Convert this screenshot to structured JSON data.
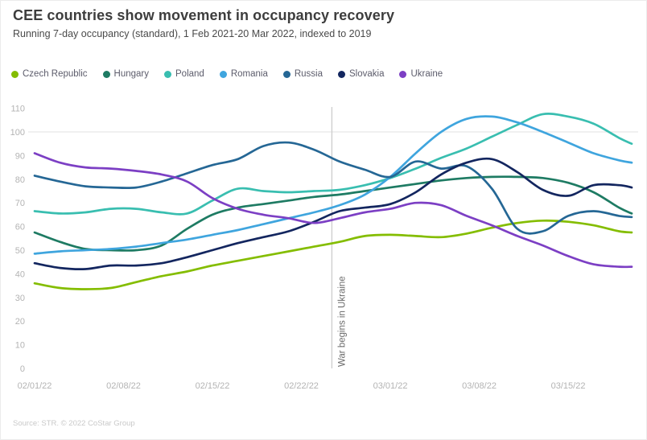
{
  "header": {
    "title": "CEE countries show movement in occupancy recovery",
    "subtitle": "Running 7-day occupancy (standard), 1 Feb 2021-20 Mar 2022, indexed to 2019"
  },
  "source": "Source: STR. © 2022 CoStar Group",
  "colors": {
    "title_text": "#3d3d3d",
    "subtitle_text": "#4a4a4a",
    "axis_text": "#b3b3b3",
    "legend_text": "#5c5c6b",
    "gridline": "#e2e2e2",
    "war_line": "#cccccc",
    "war_label_text": "#6a6a6a",
    "background": "#ffffff"
  },
  "chart_data": {
    "type": "line",
    "title": "CEE countries show movement in occupancy recovery",
    "subtitle": "Running 7-day occupancy (standard), 1 Feb 2021-20 Mar 2022, indexed to 2019",
    "xlabel": "",
    "ylabel": "",
    "ylim": [
      0,
      110
    ],
    "y_ticks": [
      0,
      10,
      20,
      30,
      40,
      50,
      60,
      70,
      80,
      90,
      100,
      110
    ],
    "gridlines_y": [
      100
    ],
    "grid": "only at 100",
    "legend_position": "top",
    "x_tick_labels": [
      "02/01/22",
      "02/08/22",
      "02/15/22",
      "02/22/22",
      "03/01/22",
      "03/08/22",
      "03/15/22"
    ],
    "x_tick_day_offsets": [
      0,
      7,
      14,
      21,
      28,
      35,
      42
    ],
    "annotation": {
      "label": "War begins in Ukraine",
      "date": "02/24/22",
      "day_offset": 23.4
    },
    "sample_dates": [
      "02/01/22",
      "02/03/22",
      "02/05/22",
      "02/07/22",
      "02/09/22",
      "02/11/22",
      "02/13/22",
      "02/15/22",
      "02/17/22",
      "02/19/22",
      "02/21/22",
      "02/23/22",
      "02/25/22",
      "02/27/22",
      "03/01/22",
      "03/03/22",
      "03/05/22",
      "03/07/22",
      "03/09/22",
      "03/11/22",
      "03/13/22",
      "03/15/22",
      "03/17/22",
      "03/19/22",
      "03/20/22"
    ],
    "day_offsets": [
      0,
      2,
      4,
      6,
      8,
      10,
      12,
      14,
      16,
      18,
      20,
      22,
      24,
      26,
      28,
      30,
      32,
      34,
      36,
      38,
      40,
      42,
      44,
      46,
      47
    ],
    "series": [
      {
        "name": "Czech Republic",
        "color": "#84BD00",
        "values": [
          36,
          34,
          33.5,
          34,
          36.5,
          39,
          41,
          43.5,
          45.5,
          47.5,
          49.5,
          51.5,
          53.5,
          56,
          56.5,
          56,
          55.5,
          57,
          59.5,
          61.5,
          62.5,
          62,
          60.5,
          58,
          57.5
        ]
      },
      {
        "name": "Hungary",
        "color": "#1E7B63",
        "values": [
          57.5,
          53.5,
          50.5,
          50,
          50,
          52,
          59,
          65,
          68,
          69.5,
          71,
          72.5,
          73.5,
          75,
          76.5,
          78,
          79.5,
          80.5,
          81,
          81,
          80.5,
          78.5,
          74.5,
          68,
          65.5
        ]
      },
      {
        "name": "Poland",
        "color": "#39BEB0",
        "values": [
          66.5,
          65.5,
          66,
          67.5,
          67.5,
          66,
          65.5,
          71,
          76,
          75,
          74.5,
          75,
          75.5,
          77.5,
          80.5,
          84.5,
          89,
          93,
          98,
          103,
          107.5,
          106.5,
          103.5,
          97.5,
          95
        ]
      },
      {
        "name": "Romania",
        "color": "#3FA5DE",
        "values": [
          48.5,
          49.5,
          50,
          50.5,
          51.5,
          53,
          54.5,
          56.5,
          58.5,
          61,
          63.5,
          66,
          69,
          73.5,
          81,
          91,
          100,
          105.5,
          106.5,
          104,
          100,
          95.5,
          91,
          88,
          87
        ]
      },
      {
        "name": "Russia",
        "color": "#256795",
        "values": [
          81.5,
          79,
          77,
          76.5,
          76.5,
          79,
          82.5,
          86,
          88.5,
          94,
          95.5,
          92.5,
          87.5,
          84,
          81,
          87.5,
          84.5,
          85.5,
          76,
          59,
          58,
          64.5,
          66.5,
          64.5,
          64
        ]
      },
      {
        "name": "Slovakia",
        "color": "#13265F",
        "values": [
          44.5,
          42.5,
          42,
          43.5,
          43.5,
          44.5,
          47,
          50,
          53,
          55.5,
          58,
          62,
          66.5,
          68,
          69.5,
          74.5,
          82,
          87,
          88.5,
          83,
          75.5,
          73,
          77.5,
          77.5,
          76.5
        ]
      },
      {
        "name": "Ukraine",
        "color": "#7C3FC4",
        "values": [
          91,
          87,
          85,
          84.5,
          83.5,
          82,
          79,
          72,
          67.5,
          65,
          63.5,
          61.5,
          63.5,
          66,
          67.5,
          70,
          69,
          64.5,
          60.5,
          56,
          52,
          47.5,
          44,
          43,
          43
        ]
      }
    ]
  }
}
